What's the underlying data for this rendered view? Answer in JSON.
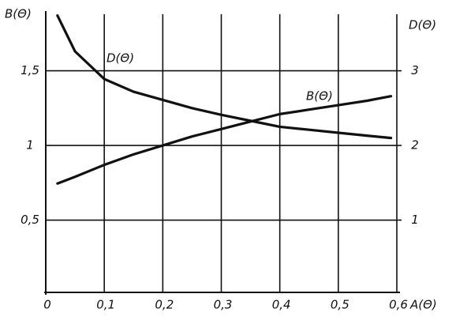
{
  "chart_data": {
    "type": "line",
    "xlabel": "A(Θ)",
    "ylabel": "B(Θ)",
    "y2label": "D(Θ)",
    "x": [
      0.02,
      0.05,
      0.1,
      0.15,
      0.2,
      0.25,
      0.3,
      0.35,
      0.4,
      0.45,
      0.5,
      0.55,
      0.59
    ],
    "series": [
      {
        "name": "B(Θ)",
        "color": "#111111",
        "values": [
          0.745,
          0.79,
          0.87,
          0.94,
          1.0,
          1.06,
          1.11,
          1.16,
          1.21,
          1.24,
          1.27,
          1.3,
          1.33
        ]
      },
      {
        "name": "D(Θ)",
        "color": "#111111",
        "axis": "y2",
        "values": [
          3.74,
          3.26,
          2.89,
          2.72,
          2.61,
          2.5,
          2.41,
          2.33,
          2.25,
          2.21,
          2.17,
          2.13,
          2.1
        ]
      }
    ],
    "xlim": [
      0,
      0.6
    ],
    "xticks": [
      0,
      {
        "value": 0.1,
        "label": "0,1"
      },
      {
        "value": 0.2,
        "label": "0,2"
      },
      {
        "value": 0.3,
        "label": "0,3"
      },
      {
        "value": 0.4,
        "label": "0,4"
      },
      {
        "value": 0.5,
        "label": "0,5"
      },
      {
        "value": 0.6,
        "label": "0,6"
      }
    ],
    "ylim": [
      0,
      1.9
    ],
    "yticks": [
      {
        "value": 0.5,
        "label": "0,5"
      },
      1,
      {
        "value": 1.5,
        "label": "1,5"
      }
    ],
    "y2lim": [
      0,
      3.8
    ],
    "y2ticks": [
      1,
      2,
      3
    ],
    "grid": true
  }
}
